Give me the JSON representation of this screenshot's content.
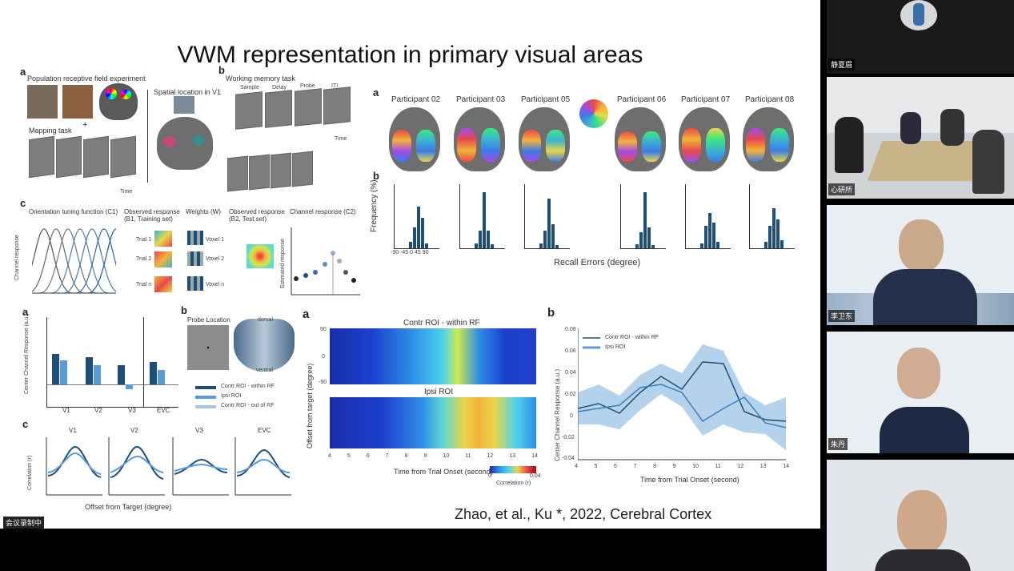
{
  "slide": {
    "title": "VWM representation in primary visual areas",
    "citation": "Zhao, et al., Ku *, 2022, Cerebral Cortex",
    "panel_a1": {
      "letter": "a",
      "heading": "Population receptive field experiment",
      "spatial_label": "Spatial location in V1",
      "mapping_label": "Mapping task",
      "plus": "+",
      "time": "Time"
    },
    "panel_b1": {
      "letter": "b",
      "heading": "Working memory task",
      "steps": [
        "Sample",
        "Delay",
        "Probe",
        "ITI"
      ],
      "time": "Time"
    },
    "panel_c1": {
      "letter": "c",
      "tuning": "Orientation tuning function (C1)",
      "observed_b1": "Observed response (B1, Training set)",
      "weights": "Weights (W)",
      "observed_b2": "Observed response (B2, Test set)",
      "channel": "Channel response (C2)",
      "ylabel_channel": "Channel response",
      "ylabel_estimated": "Estimated response",
      "trials": [
        "Trial 1",
        "Trial 2",
        "Trial n"
      ],
      "voxels": [
        "Voxel 1",
        "Voxel 2",
        "Voxel n"
      ]
    },
    "right_a": {
      "letter": "a",
      "participants": [
        "Participant 02",
        "Participant 03",
        "Participant 05",
        "Participant 06",
        "Participant 07",
        "Participant 08"
      ]
    },
    "right_b": {
      "letter": "b",
      "ylabel": "Frequency (%)",
      "xlabel": "Recall Errors (degree)",
      "yticks": [
        "0.6",
        "0.5",
        "0.4",
        "0.3",
        "0.2",
        "0.1",
        "0"
      ],
      "xticks": [
        "-90",
        "-45",
        "0",
        "45",
        "90"
      ]
    },
    "bottom_a": {
      "letter": "a",
      "ylabel": "Center Channel Response (a.u.)",
      "areas": [
        "V1",
        "V2",
        "V3",
        "EVC"
      ]
    },
    "bottom_b": {
      "letter": "b",
      "probe": "Probe Location",
      "dorsal": "dorsal",
      "ventral": "ventral",
      "legend": [
        "Contr ROI - within RF",
        "Ipsi ROI",
        "Contr ROI - out of RF"
      ]
    },
    "bottom_c": {
      "letter": "c",
      "ylabel": "Correlation (r)",
      "xlabel": "Offset from Target (degree)",
      "areas": [
        "V1",
        "V2",
        "V3",
        "EVC"
      ]
    },
    "heatmap": {
      "letter": "a",
      "top_title": "Contr ROI - within RF",
      "bottom_title": "Ipsi ROI",
      "ylabel": "Offset from target (degree)",
      "xlabel": "Time from Trial Onset (second)",
      "xticks": [
        "4",
        "5",
        "6",
        "7",
        "8",
        "9",
        "10",
        "11",
        "12",
        "13",
        "14"
      ],
      "yticks": [
        "90",
        "0",
        "-90"
      ],
      "cbar_label": "Correlation (r)",
      "cbar_ticks": [
        "0",
        "0.04"
      ]
    },
    "timecourse": {
      "letter": "b",
      "ylabel": "Center Channel Response (a.u.)",
      "xlabel": "Time from Trial Onset (second)",
      "legend": [
        "Contr ROI - within RF",
        "Ipsi ROI"
      ],
      "yticks": [
        "0.08",
        "0.06",
        "0.04",
        "0.02",
        "0",
        "-0.02",
        "-0.04"
      ],
      "xticks": [
        "4",
        "5",
        "6",
        "7",
        "8",
        "9",
        "10",
        "11",
        "12",
        "13",
        "14"
      ]
    }
  },
  "recording_label": "会议录制中",
  "participants_panel": [
    {
      "name": "静夏眉"
    },
    {
      "name": "心研所"
    },
    {
      "name": "李卫东"
    },
    {
      "name": "朱丹"
    },
    {
      "name": ""
    }
  ],
  "colors": {
    "accent_blue": "#1f4e79",
    "light_blue": "#5b9bd5"
  }
}
